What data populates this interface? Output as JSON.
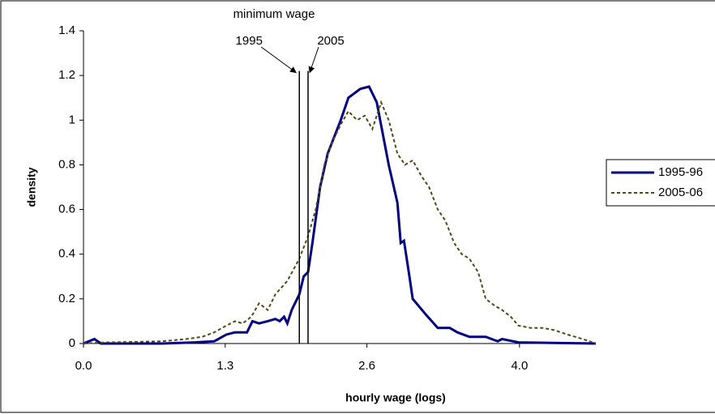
{
  "chart_data": {
    "type": "line",
    "xlabel": "hourly wage (logs)",
    "ylabel": "density",
    "xlim": [
      0,
      4.7
    ],
    "ylim": [
      0,
      1.4
    ],
    "xticks": [
      {
        "value": 0,
        "label": "0.0"
      },
      1.3,
      2.6,
      {
        "value": 4,
        "label": "4.0"
      }
    ],
    "yticks": [
      0,
      0.2,
      0.4,
      0.6,
      0.8,
      1,
      1.2,
      1.4
    ],
    "grid": false,
    "legend": "right",
    "annotation": "minimum wage",
    "vlines": [
      {
        "x": 1.98,
        "top": 1.22,
        "label": "1995"
      },
      {
        "x": 2.06,
        "top": 1.22,
        "label": "2005"
      }
    ],
    "series": [
      {
        "name": "1995-96",
        "color": "#000080",
        "dash": false,
        "x": [
          0,
          0.1,
          0.16,
          0.35,
          0.72,
          1.02,
          1.2,
          1.31,
          1.39,
          1.5,
          1.55,
          1.61,
          1.69,
          1.76,
          1.8,
          1.84,
          1.87,
          1.91,
          1.98,
          2.02,
          2.06,
          2.1,
          2.17,
          2.24,
          2.36,
          2.43,
          2.54,
          2.62,
          2.69,
          2.8,
          2.88,
          2.91,
          2.94,
          2.99,
          3.02,
          3.14,
          3.25,
          3.36,
          3.43,
          3.54,
          3.69,
          3.8,
          3.84,
          3.99,
          4.7
        ],
        "values": [
          0,
          0.02,
          0,
          0,
          0,
          0.005,
          0.01,
          0.04,
          0.05,
          0.05,
          0.1,
          0.09,
          0.1,
          0.11,
          0.1,
          0.12,
          0.09,
          0.15,
          0.22,
          0.3,
          0.32,
          0.45,
          0.7,
          0.85,
          1.0,
          1.1,
          1.14,
          1.15,
          1.08,
          0.8,
          0.63,
          0.45,
          0.46,
          0.3,
          0.2,
          0.13,
          0.07,
          0.07,
          0.05,
          0.03,
          0.03,
          0.01,
          0.02,
          0.005,
          0
        ]
      },
      {
        "name": "2005-06",
        "color": "#4d4d1a",
        "dash": true,
        "x": [
          0,
          0.2,
          0.72,
          0.94,
          1.09,
          1.2,
          1.31,
          1.39,
          1.46,
          1.54,
          1.61,
          1.69,
          1.76,
          1.87,
          1.98,
          2.06,
          2.13,
          2.21,
          2.28,
          2.36,
          2.43,
          2.51,
          2.58,
          2.65,
          2.73,
          2.8,
          2.88,
          2.95,
          3.02,
          3.1,
          3.17,
          3.25,
          3.32,
          3.4,
          3.47,
          3.54,
          3.62,
          3.69,
          3.77,
          3.84,
          3.92,
          3.99,
          4.1,
          4.21,
          4.32,
          4.44,
          4.58,
          4.7
        ],
        "values": [
          0,
          0.005,
          0.01,
          0.02,
          0.03,
          0.05,
          0.08,
          0.1,
          0.09,
          0.12,
          0.18,
          0.15,
          0.22,
          0.28,
          0.38,
          0.48,
          0.6,
          0.8,
          0.9,
          0.98,
          1.04,
          1.0,
          1.02,
          0.96,
          1.08,
          1.0,
          0.85,
          0.8,
          0.82,
          0.75,
          0.7,
          0.6,
          0.55,
          0.45,
          0.4,
          0.38,
          0.32,
          0.2,
          0.17,
          0.15,
          0.12,
          0.08,
          0.07,
          0.07,
          0.06,
          0.04,
          0.02,
          0
        ]
      }
    ]
  }
}
